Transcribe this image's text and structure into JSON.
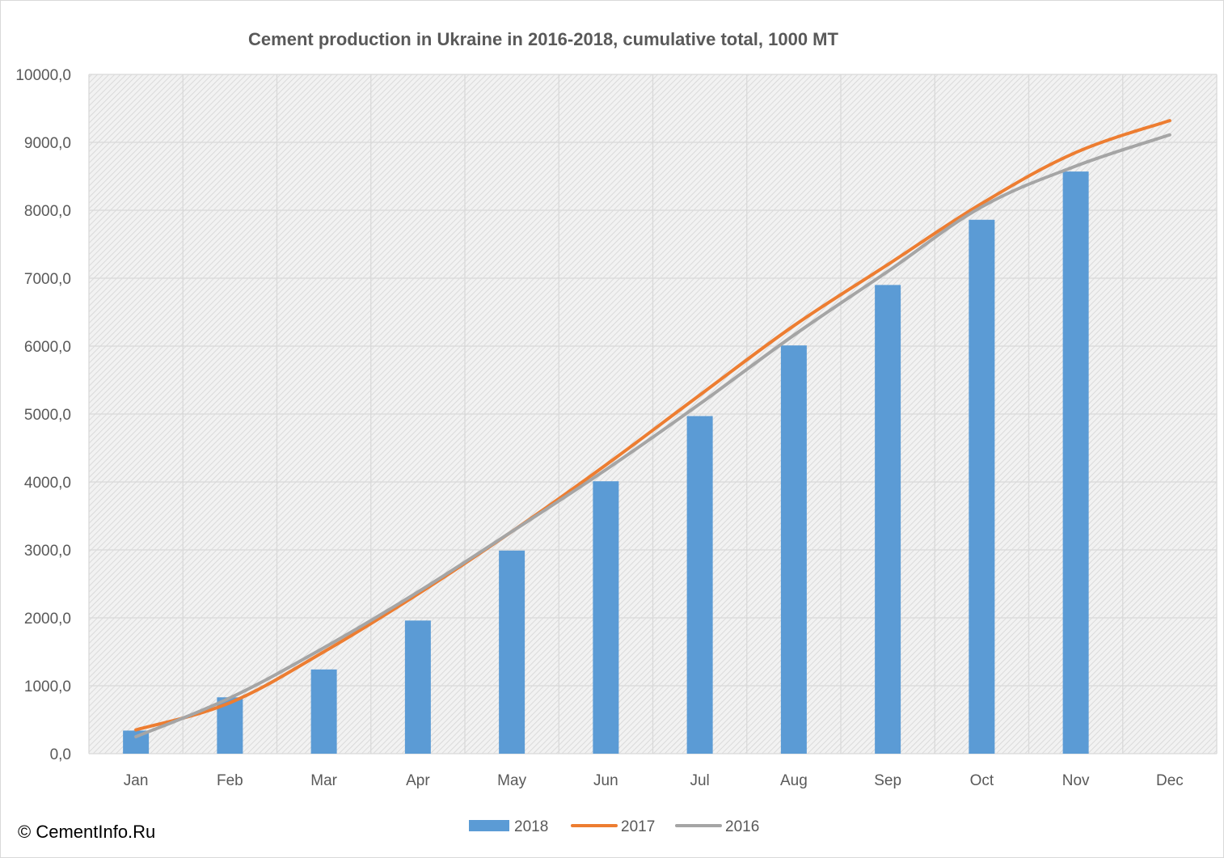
{
  "chart_data": {
    "type": "bar",
    "title": "Cement production in Ukraine in 2016-2018, cumulative total, 1000 MT",
    "categories": [
      "Jan",
      "Feb",
      "Mar",
      "Apr",
      "May",
      "Jun",
      "Jul",
      "Aug",
      "Sep",
      "Oct",
      "Nov",
      "Dec"
    ],
    "ylim": [
      0,
      10000
    ],
    "yticks": [
      "0,0",
      "1000,0",
      "2000,0",
      "3000,0",
      "4000,0",
      "5000,0",
      "6000,0",
      "7000,0",
      "8000,0",
      "9000,0",
      "10000,0"
    ],
    "grid": true,
    "legend_position": "bottom",
    "series": [
      {
        "name": "2018",
        "kind": "bar",
        "color": "#5b9bd5",
        "values": [
          340,
          830,
          1240,
          1960,
          2990,
          4010,
          4970,
          6010,
          6900,
          7860,
          8570,
          null
        ]
      },
      {
        "name": "2017",
        "kind": "line",
        "color": "#ed7d31",
        "values": [
          350,
          750,
          1500,
          2350,
          3270,
          4250,
          5280,
          6300,
          7200,
          8100,
          8850,
          9320
        ]
      },
      {
        "name": "2016",
        "kind": "line",
        "color": "#a5a5a5",
        "values": [
          250,
          820,
          1560,
          2380,
          3270,
          4180,
          5150,
          6160,
          7100,
          8050,
          8650,
          9110
        ]
      }
    ]
  },
  "copyright": "© CementInfo.Ru"
}
